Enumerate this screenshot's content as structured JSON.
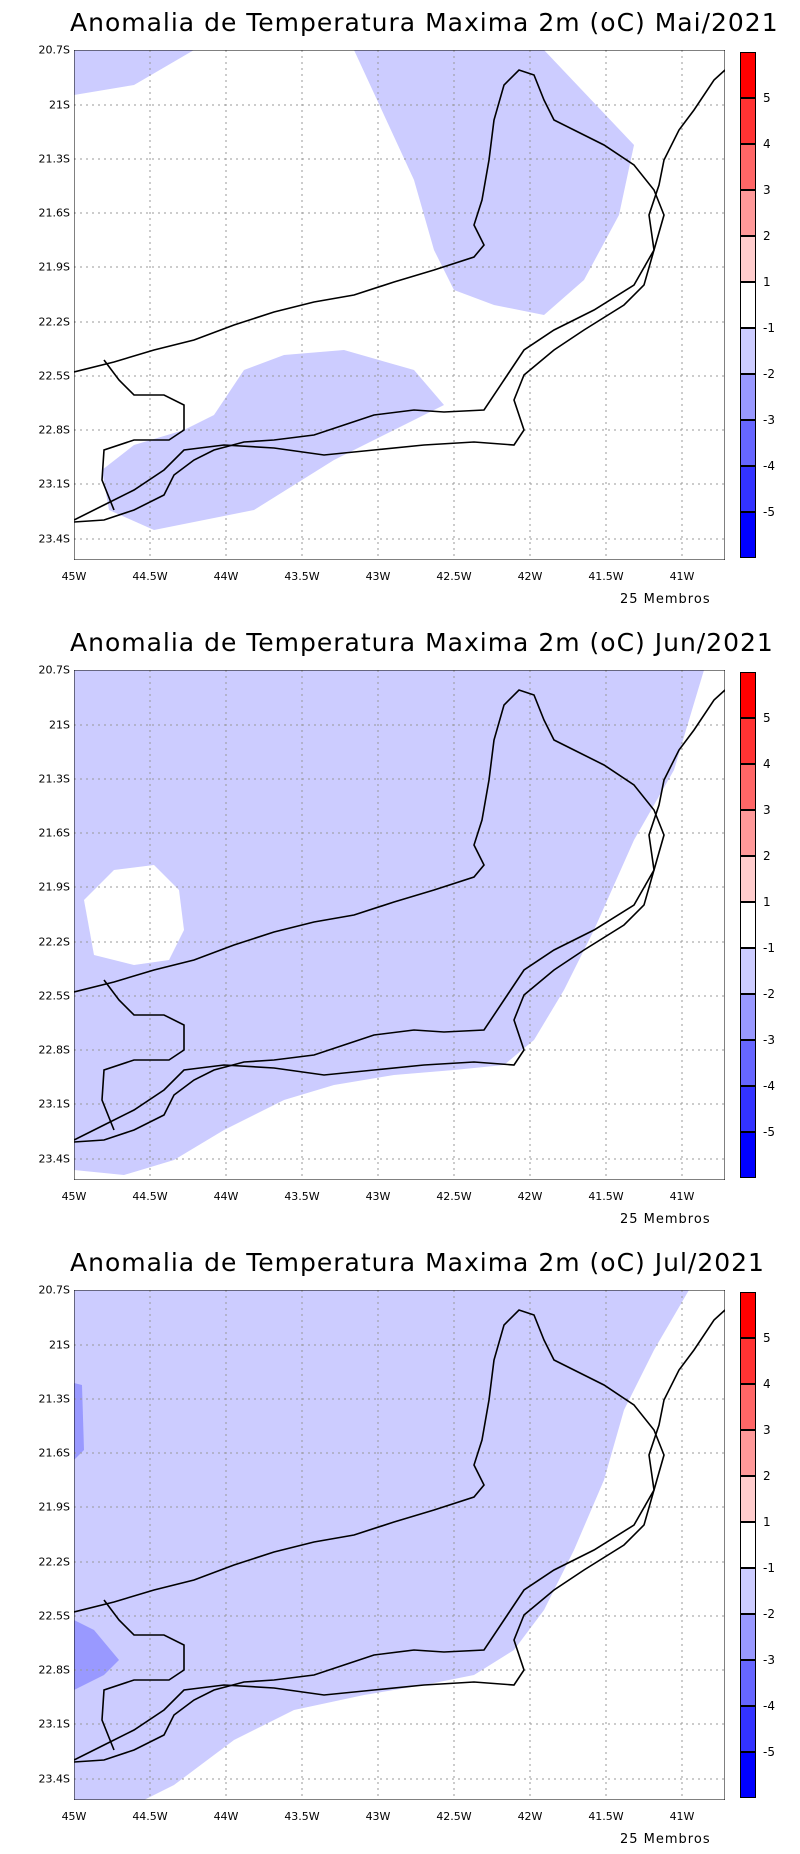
{
  "panels": [
    {
      "title": "Anomalia de Temperatura Maxima 2m (oC) Mai/2021"
    },
    {
      "title": "Anomalia de Temperatura Maxima 2m (oC) Jun/2021"
    },
    {
      "title": "Anomalia de Temperatura Maxima 2m (oC) Jul/2021"
    }
  ],
  "lat_ticks": [
    "20.7S",
    "21S",
    "21.3S",
    "21.6S",
    "21.9S",
    "22.2S",
    "22.5S",
    "22.8S",
    "23.1S",
    "23.4S"
  ],
  "lon_ticks": [
    "45W",
    "44.5W",
    "44W",
    "43.5W",
    "43W",
    "42.5W",
    "42W",
    "41.5W",
    "41W"
  ],
  "members_label": "25 Membros",
  "colorbar": {
    "labels": [
      "5",
      "4",
      "3",
      "2",
      "1",
      "-1",
      "-2",
      "-3",
      "-4",
      "-5"
    ],
    "colors": [
      "#ff0000",
      "#ff3333",
      "#ff6666",
      "#ff9999",
      "#ffcccc",
      "#ffffff",
      "#ccccff",
      "#9999ff",
      "#6666ff",
      "#3333ff",
      "#0000ff"
    ]
  },
  "colors": {
    "anomaly_minus_1_to_minus_2": "#ccccff",
    "anomaly_minus_2_to_minus_3": "#9999ff"
  }
}
